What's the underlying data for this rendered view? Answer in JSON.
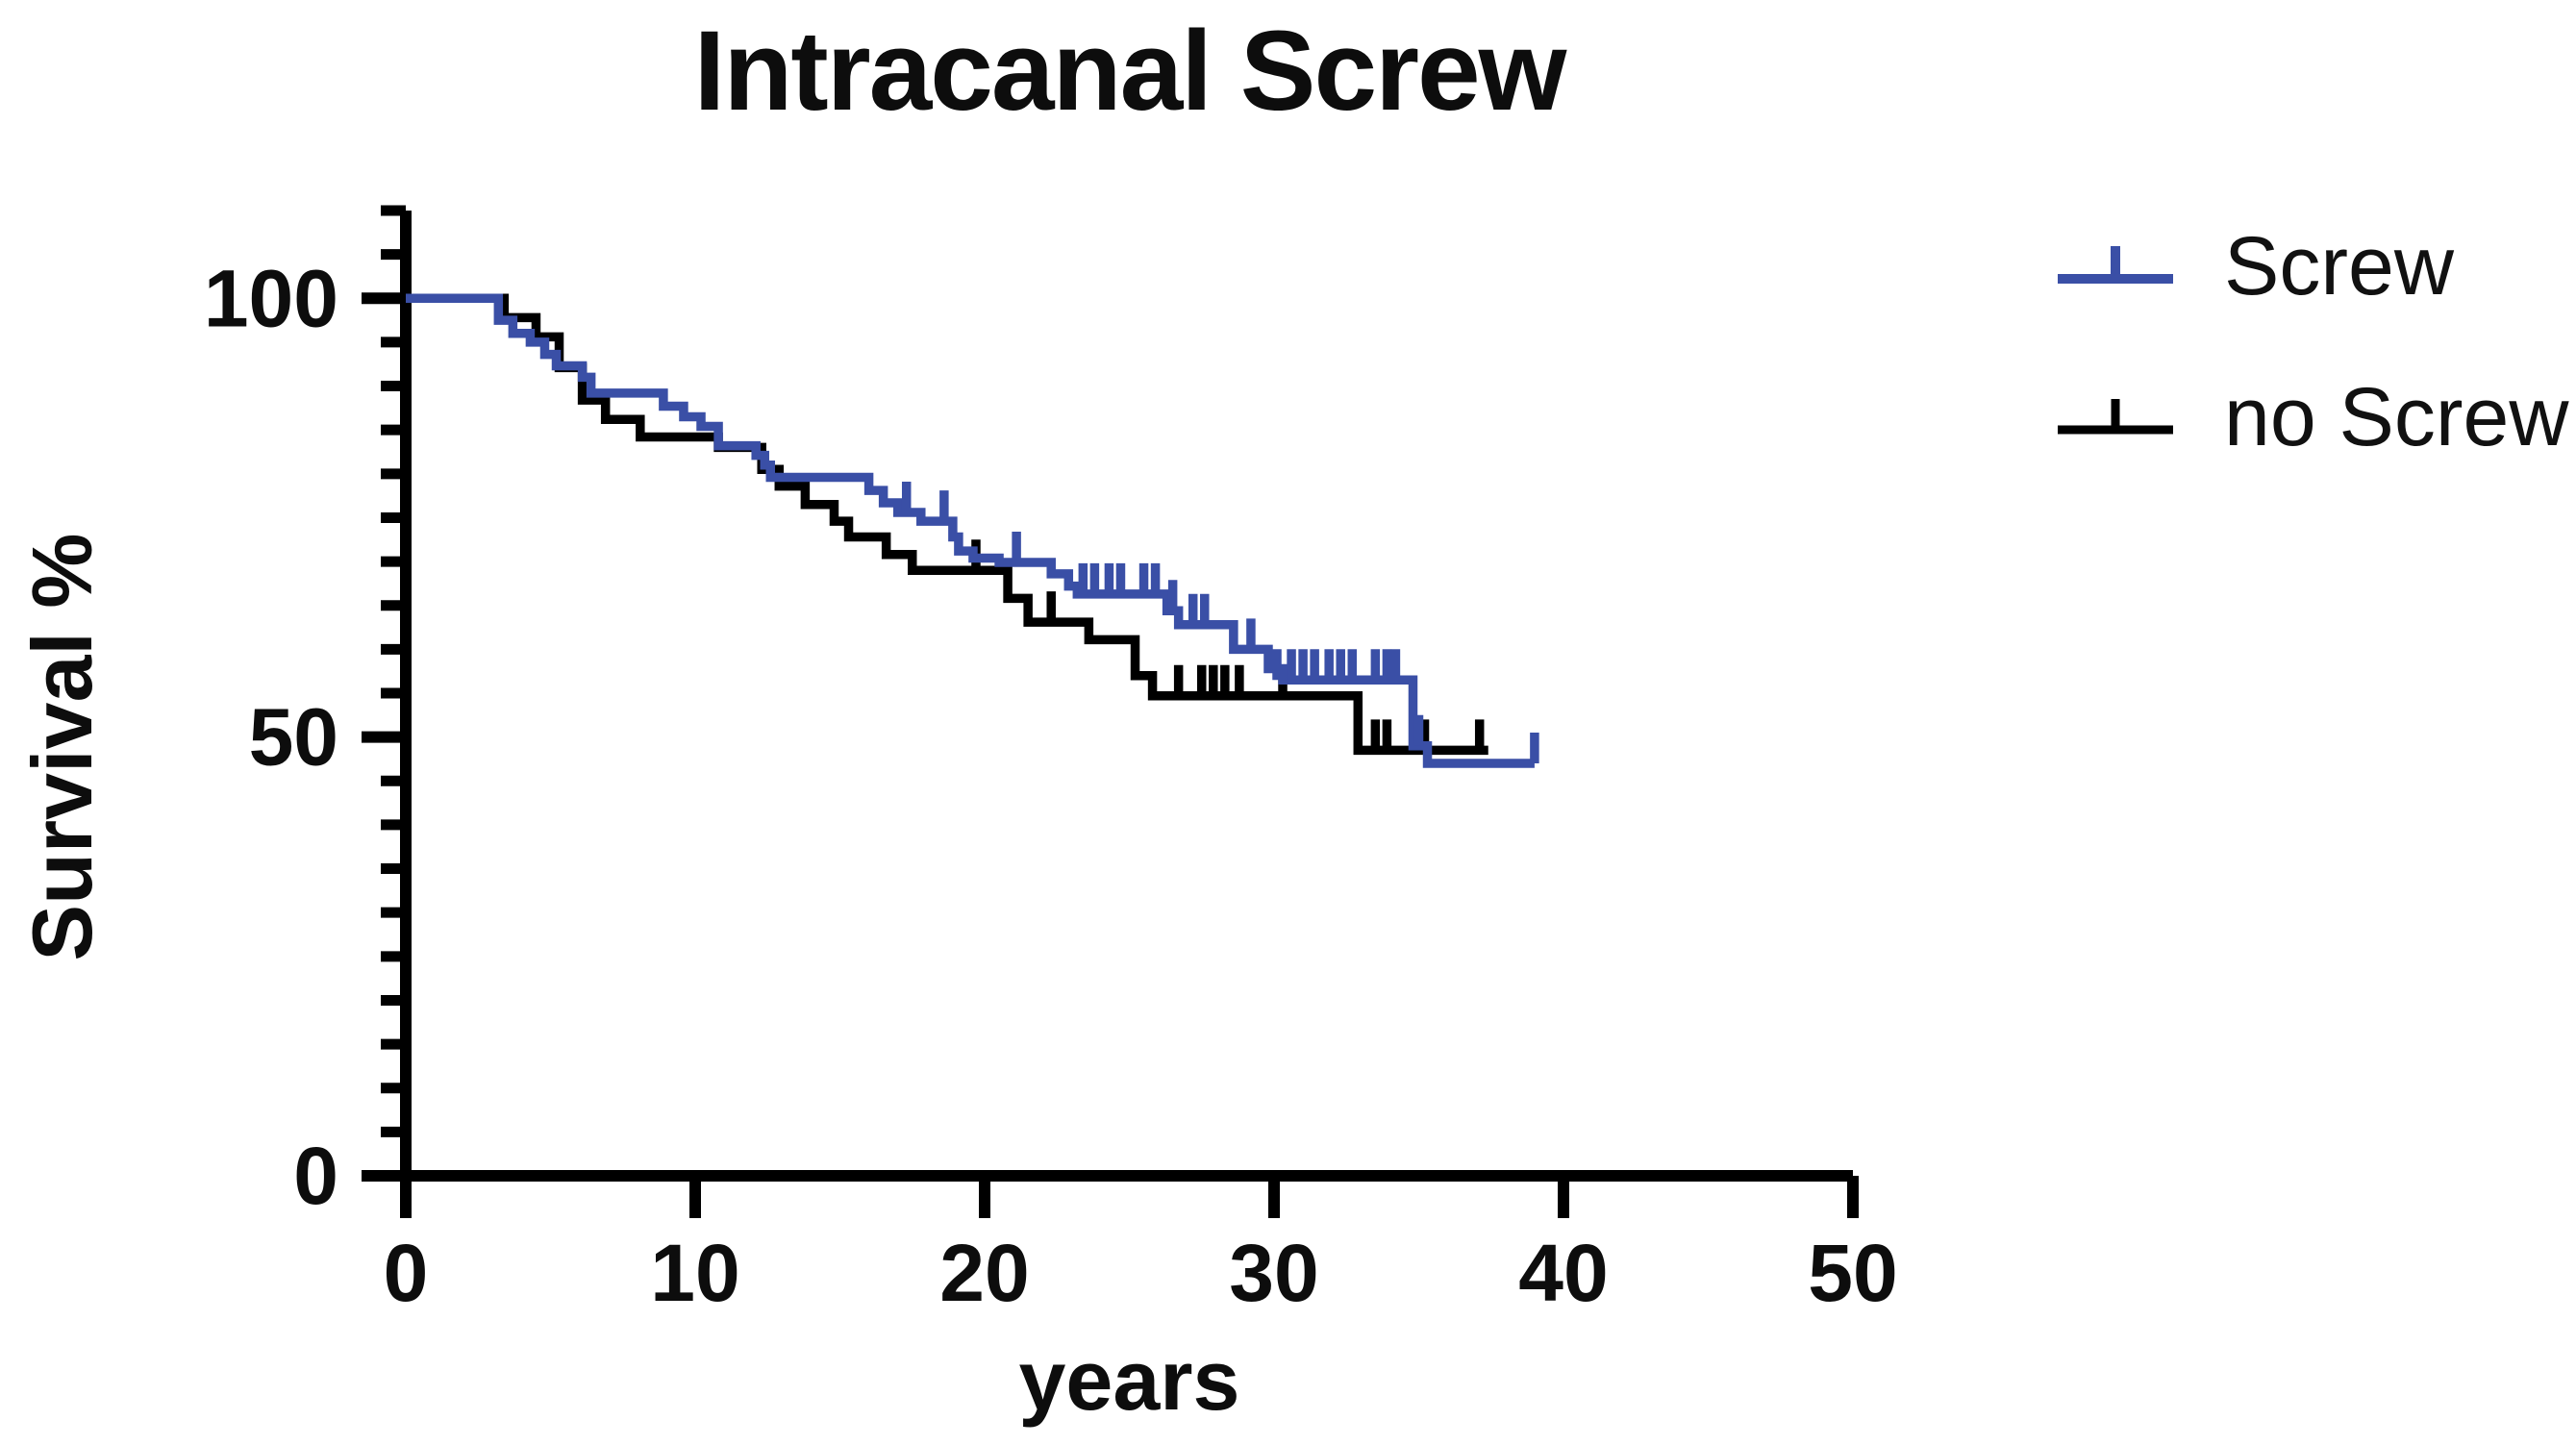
{
  "page": {
    "background": "#ffffff"
  },
  "title": "Intracanal Screw",
  "axes": {
    "y_title": "Survival %",
    "x_title": "years",
    "y_major_tick_labels": [
      "100",
      "50",
      "0"
    ],
    "x_tick_labels": [
      "0",
      "10",
      "20",
      "30",
      "40",
      "50"
    ]
  },
  "legend": {
    "items": [
      {
        "label": "Screw",
        "color": "#3a4fa6",
        "symbol": "line-with-censor-tick"
      },
      {
        "label": "no Screw",
        "color": "#000000",
        "symbol": "line-with-censor-tick"
      }
    ]
  },
  "chart_data": {
    "type": "line",
    "subtype": "kaplan-meier-step",
    "title": "Intracanal Screw",
    "xlabel": "years",
    "ylabel": "Survival %",
    "xlim": [
      0,
      50
    ],
    "ylim": [
      0,
      110
    ],
    "x_ticks": [
      0,
      10,
      20,
      30,
      40,
      50
    ],
    "y_major_ticks": [
      0,
      50,
      100
    ],
    "y_minor_tick_step": 5,
    "grid": false,
    "legend_position": "right",
    "series": [
      {
        "name": "no Screw",
        "color": "#000000",
        "steps": [
          [
            0,
            100
          ],
          [
            3.4,
            97.8
          ],
          [
            4.5,
            95.6
          ],
          [
            5.3,
            92.1
          ],
          [
            6.1,
            88.4
          ],
          [
            6.9,
            86.2
          ],
          [
            8.1,
            84.2
          ],
          [
            10.8,
            83.0
          ],
          [
            12.3,
            80.5
          ],
          [
            12.9,
            78.6
          ],
          [
            13.8,
            76.5
          ],
          [
            14.8,
            74.6
          ],
          [
            15.3,
            72.8
          ],
          [
            16.6,
            70.8
          ],
          [
            17.5,
            69.0
          ],
          [
            20.8,
            65.8
          ],
          [
            21.5,
            63.1
          ],
          [
            23.6,
            61.1
          ],
          [
            25.2,
            57.0
          ],
          [
            25.8,
            54.7
          ],
          [
            32.9,
            48.5
          ]
        ],
        "end_time": 37.4,
        "censor_marks": [
          [
            19.7,
            69.0
          ],
          [
            22.3,
            63.1
          ],
          [
            26.7,
            54.7
          ],
          [
            27.5,
            54.7
          ],
          [
            27.9,
            54.7
          ],
          [
            28.3,
            54.7
          ],
          [
            28.8,
            54.7
          ],
          [
            30.3,
            54.7
          ],
          [
            33.5,
            48.5
          ],
          [
            33.9,
            48.5
          ],
          [
            35.2,
            48.5
          ],
          [
            37.1,
            48.5
          ]
        ]
      },
      {
        "name": "Screw",
        "color": "#3a4fa6",
        "steps": [
          [
            0,
            100
          ],
          [
            3.2,
            97.5
          ],
          [
            3.7,
            96.0
          ],
          [
            4.3,
            95.0
          ],
          [
            4.8,
            93.6
          ],
          [
            5.2,
            92.3
          ],
          [
            6.1,
            91.0
          ],
          [
            6.4,
            89.2
          ],
          [
            8.9,
            87.7
          ],
          [
            9.6,
            86.5
          ],
          [
            10.2,
            85.4
          ],
          [
            10.8,
            83.2
          ],
          [
            12.1,
            82.1
          ],
          [
            12.4,
            81.0
          ],
          [
            12.6,
            79.6
          ],
          [
            16.0,
            78.1
          ],
          [
            16.5,
            76.7
          ],
          [
            17.0,
            75.6
          ],
          [
            17.8,
            74.6
          ],
          [
            18.9,
            72.8
          ],
          [
            19.1,
            71.2
          ],
          [
            19.6,
            70.4
          ],
          [
            20.5,
            69.9
          ],
          [
            22.3,
            68.6
          ],
          [
            22.9,
            67.2
          ],
          [
            23.2,
            66.3
          ],
          [
            26.3,
            64.4
          ],
          [
            26.7,
            62.8
          ],
          [
            28.6,
            60.0
          ],
          [
            29.8,
            57.8
          ],
          [
            30.3,
            56.5
          ],
          [
            34.8,
            49.0
          ],
          [
            35.3,
            47.0
          ]
        ],
        "end_time": 39.0,
        "censor_marks": [
          [
            17.3,
            75.6
          ],
          [
            18.6,
            74.6
          ],
          [
            21.1,
            69.9
          ],
          [
            23.4,
            66.3
          ],
          [
            23.8,
            66.3
          ],
          [
            24.3,
            66.3
          ],
          [
            24.7,
            66.3
          ],
          [
            25.5,
            66.3
          ],
          [
            25.9,
            66.3
          ],
          [
            26.5,
            64.4
          ],
          [
            27.2,
            62.8
          ],
          [
            27.6,
            62.8
          ],
          [
            29.2,
            60.0
          ],
          [
            30.1,
            56.5
          ],
          [
            30.6,
            56.5
          ],
          [
            31.0,
            56.5
          ],
          [
            31.4,
            56.5
          ],
          [
            31.9,
            56.5
          ],
          [
            32.3,
            56.5
          ],
          [
            32.7,
            56.5
          ],
          [
            33.5,
            56.5
          ],
          [
            33.9,
            56.5
          ],
          [
            34.2,
            56.5
          ],
          [
            35.0,
            49.0
          ],
          [
            39.0,
            47.0
          ]
        ]
      }
    ]
  }
}
